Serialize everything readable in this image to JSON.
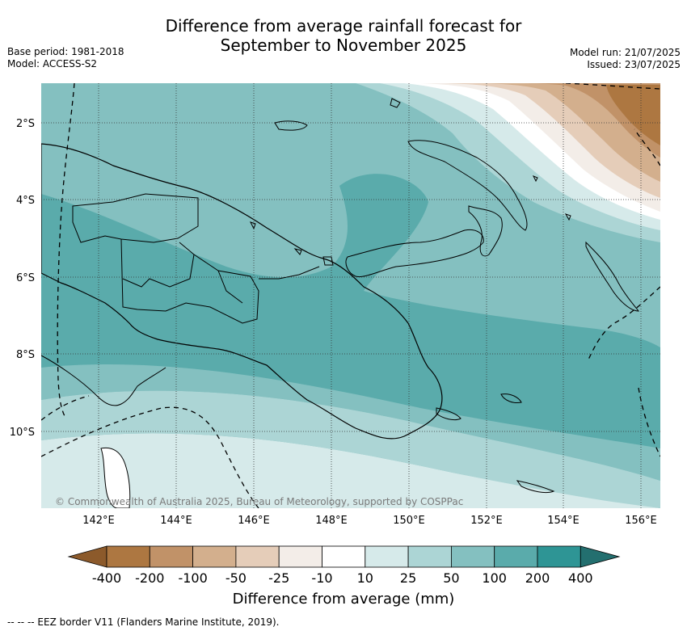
{
  "title_line1": "Difference from average rainfall forecast for",
  "title_line2": "September to November 2025",
  "meta": {
    "base_period": "Base period: 1981-2018",
    "model": "Model: ACCESS-S2",
    "model_run": "Model run: 21/07/2025",
    "issued": "Issued: 23/07/2025"
  },
  "copyright": "© Commonwealth of Australia 2025, Bureau of Meteorology, supported by COSPPac",
  "lat_labels": [
    "2°S",
    "4°S",
    "6°S",
    "8°S",
    "10°S"
  ],
  "lon_labels": [
    "142°E",
    "144°E",
    "146°E",
    "148°E",
    "150°E",
    "152°E",
    "154°E",
    "156°E"
  ],
  "colorbar": {
    "ticks": [
      "-400",
      "-200",
      "-100",
      "-50",
      "-25",
      "-10",
      "10",
      "25",
      "50",
      "100",
      "200",
      "400"
    ],
    "colors": [
      "#8c5a2b",
      "#ad7741",
      "#c19268",
      "#d3af8d",
      "#e5cdb9",
      "#f3ede8",
      "#ffffff",
      "#d6eaea",
      "#acd5d5",
      "#84c0c0",
      "#5aabab",
      "#2e9595",
      "#236f6f"
    ],
    "label": "Difference from average (mm)"
  },
  "footer": "--  --  -- EEZ border V11 (Flanders Marine Institute, 2019).",
  "palette": {
    "ocean_gridline": "#333333",
    "coast": "#000000"
  }
}
